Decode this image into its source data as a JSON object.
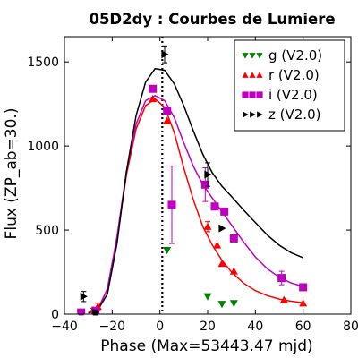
{
  "chart_data": {
    "type": "scatter",
    "title": "05D2dy : Courbes de Lumiere",
    "xlabel": "Phase (Max=53443.47 mjd)",
    "ylabel": "Flux (ZP_ab=30.)",
    "xlim": [
      -40,
      80
    ],
    "ylim": [
      0,
      1650
    ],
    "x_ticks": [
      -40,
      -20,
      0,
      20,
      40,
      60,
      80
    ],
    "y_ticks": [
      0,
      500,
      1000,
      1500
    ],
    "x_tick_labels": [
      "−40",
      "−20",
      "0",
      "20",
      "40",
      "60",
      "80"
    ],
    "y_tick_labels": [
      "0",
      "500",
      "1000",
      "1500"
    ],
    "max_phase_line": 1,
    "grid": false,
    "legend_position": "top-right",
    "series": [
      {
        "name": "g (V2.0)",
        "color": "#008000",
        "marker": "triangle-down",
        "points": [
          {
            "x": -33,
            "y": 5,
            "err": 0
          },
          {
            "x": 3,
            "y": 380,
            "err": 0
          },
          {
            "x": 20,
            "y": 105,
            "err": 0
          },
          {
            "x": 26,
            "y": 60,
            "err": 0
          },
          {
            "x": 31,
            "y": 65,
            "err": 0
          }
        ],
        "model": []
      },
      {
        "name": "r (V2.0)",
        "color": "#ff0000",
        "marker": "triangle-up",
        "points": [
          {
            "x": -33,
            "y": 8,
            "err": 10
          },
          {
            "x": -28,
            "y": 25,
            "err": 10
          },
          {
            "x": -26,
            "y": 45,
            "err": 20
          },
          {
            "x": -3,
            "y": 1280,
            "err": 0
          },
          {
            "x": 3,
            "y": 1150,
            "err": 0
          },
          {
            "x": 20,
            "y": 520,
            "err": 30
          },
          {
            "x": 24,
            "y": 410,
            "err": 0
          },
          {
            "x": 26,
            "y": 300,
            "err": 0
          },
          {
            "x": 31,
            "y": 255,
            "err": 0
          },
          {
            "x": 52,
            "y": 85,
            "err": 0
          },
          {
            "x": 60,
            "y": 65,
            "err": 0
          }
        ],
        "model": [
          {
            "x": -30,
            "y": 8
          },
          {
            "x": -26,
            "y": 30
          },
          {
            "x": -22,
            "y": 150
          },
          {
            "x": -18,
            "y": 450
          },
          {
            "x": -14,
            "y": 830
          },
          {
            "x": -10,
            "y": 1100
          },
          {
            "x": -6,
            "y": 1240
          },
          {
            "x": -2,
            "y": 1280
          },
          {
            "x": 2,
            "y": 1230
          },
          {
            "x": 6,
            "y": 1080
          },
          {
            "x": 10,
            "y": 870
          },
          {
            "x": 14,
            "y": 680
          },
          {
            "x": 18,
            "y": 520
          },
          {
            "x": 22,
            "y": 410
          },
          {
            "x": 26,
            "y": 320
          },
          {
            "x": 30,
            "y": 250
          },
          {
            "x": 35,
            "y": 185
          },
          {
            "x": 40,
            "y": 140
          },
          {
            "x": 45,
            "y": 110
          },
          {
            "x": 50,
            "y": 90
          },
          {
            "x": 55,
            "y": 77
          },
          {
            "x": 60,
            "y": 68
          }
        ]
      },
      {
        "name": "i (V2.0)",
        "color": "#bf00bf",
        "marker": "square",
        "points": [
          {
            "x": -33,
            "y": 10,
            "err": 15
          },
          {
            "x": -27,
            "y": 20,
            "err": 15
          },
          {
            "x": -3,
            "y": 1340,
            "err": 0
          },
          {
            "x": 3,
            "y": 1210,
            "err": 0
          },
          {
            "x": 5,
            "y": 650,
            "err": 230
          },
          {
            "x": 19,
            "y": 770,
            "err": 100
          },
          {
            "x": 23,
            "y": 640,
            "err": 0
          },
          {
            "x": 27,
            "y": 610,
            "err": 0
          },
          {
            "x": 31,
            "y": 450,
            "err": 0
          },
          {
            "x": 51,
            "y": 215,
            "err": 40
          },
          {
            "x": 60,
            "y": 160,
            "err": 0
          }
        ],
        "model": [
          {
            "x": -30,
            "y": 8
          },
          {
            "x": -26,
            "y": 25
          },
          {
            "x": -22,
            "y": 150
          },
          {
            "x": -18,
            "y": 460
          },
          {
            "x": -14,
            "y": 850
          },
          {
            "x": -10,
            "y": 1130
          },
          {
            "x": -6,
            "y": 1270
          },
          {
            "x": -2,
            "y": 1300
          },
          {
            "x": 2,
            "y": 1270
          },
          {
            "x": 6,
            "y": 1170
          },
          {
            "x": 10,
            "y": 1020
          },
          {
            "x": 14,
            "y": 880
          },
          {
            "x": 18,
            "y": 770
          },
          {
            "x": 22,
            "y": 690
          },
          {
            "x": 26,
            "y": 610
          },
          {
            "x": 30,
            "y": 530
          },
          {
            "x": 35,
            "y": 430
          },
          {
            "x": 40,
            "y": 340
          },
          {
            "x": 45,
            "y": 270
          },
          {
            "x": 50,
            "y": 220
          },
          {
            "x": 55,
            "y": 185
          },
          {
            "x": 60,
            "y": 165
          }
        ]
      },
      {
        "name": "z (V2.0)",
        "color": "#000000",
        "marker": "triangle-right",
        "points": [
          {
            "x": -32,
            "y": 105,
            "err": 30
          },
          {
            "x": -27,
            "y": 10,
            "err": 15
          },
          {
            "x": 2,
            "y": 1545,
            "err": 50
          },
          {
            "x": 20,
            "y": 830,
            "err": 70
          },
          {
            "x": 26,
            "y": 510,
            "err": 0
          }
        ],
        "model": [
          {
            "x": -30,
            "y": 8
          },
          {
            "x": -26,
            "y": 25
          },
          {
            "x": -22,
            "y": 120
          },
          {
            "x": -18,
            "y": 420
          },
          {
            "x": -14,
            "y": 850
          },
          {
            "x": -10,
            "y": 1180
          },
          {
            "x": -6,
            "y": 1380
          },
          {
            "x": -2,
            "y": 1460
          },
          {
            "x": 2,
            "y": 1450
          },
          {
            "x": 6,
            "y": 1370
          },
          {
            "x": 10,
            "y": 1240
          },
          {
            "x": 14,
            "y": 1090
          },
          {
            "x": 18,
            "y": 950
          },
          {
            "x": 22,
            "y": 840
          },
          {
            "x": 26,
            "y": 760
          },
          {
            "x": 30,
            "y": 700
          },
          {
            "x": 35,
            "y": 620
          },
          {
            "x": 40,
            "y": 545
          },
          {
            "x": 45,
            "y": 470
          },
          {
            "x": 50,
            "y": 410
          },
          {
            "x": 55,
            "y": 365
          },
          {
            "x": 60,
            "y": 335
          }
        ]
      }
    ]
  }
}
